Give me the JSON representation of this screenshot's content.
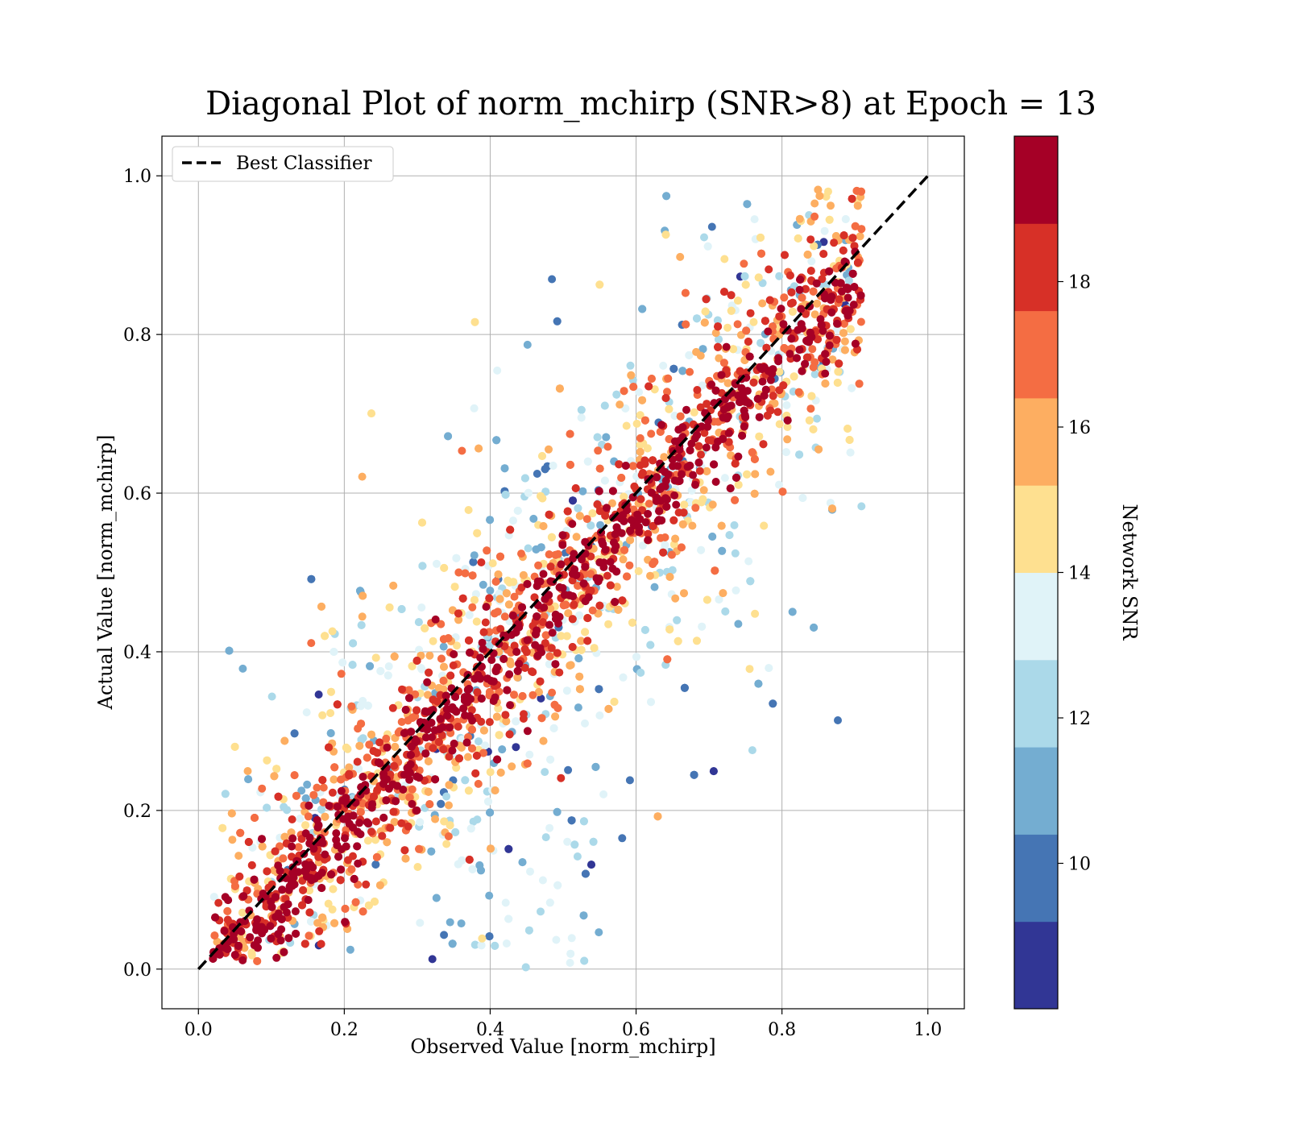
{
  "chart_data": {
    "type": "scatter",
    "title": "Diagonal Plot of norm_mchirp (SNR>8) at Epoch = 13",
    "xlabel": "Observed Value [norm_mchirp]",
    "ylabel": "Actual Value [norm_mchirp]",
    "xlim": [
      -0.05,
      1.05
    ],
    "ylim": [
      -0.05,
      1.05
    ],
    "xticks": [
      "0.0",
      "0.2",
      "0.4",
      "0.6",
      "0.8",
      "1.0"
    ],
    "yticks": [
      "0.0",
      "0.2",
      "0.4",
      "0.6",
      "0.8",
      "1.0"
    ],
    "grid": true,
    "legend": {
      "placement": "top-left",
      "entries": [
        {
          "label": "Best Classifier",
          "style": "dashed",
          "color": "#000000"
        }
      ]
    },
    "reference_line": {
      "name": "Best Classifier",
      "x": [
        0.0,
        1.0
      ],
      "y": [
        0.0,
        1.0
      ]
    },
    "colorbar": {
      "label": "Network SNR",
      "range": [
        8,
        20
      ],
      "ticks": [
        "10",
        "12",
        "14",
        "16",
        "18"
      ],
      "colors": [
        "#313695",
        "#4575b4",
        "#74add1",
        "#abd9e9",
        "#e0f3f8",
        "#fee090",
        "#fdae61",
        "#f46d43",
        "#d73027",
        "#a50026"
      ]
    },
    "points_summary": {
      "band": "dense red band along y = x; low-SNR points (blue) scattered above the diagonal for x 0.3-0.7 and below it, reaching y near 0 for x 0.3-0.55",
      "x_range": [
        0.03,
        0.91
      ],
      "y_range": [
        0.0,
        1.0
      ]
    }
  }
}
